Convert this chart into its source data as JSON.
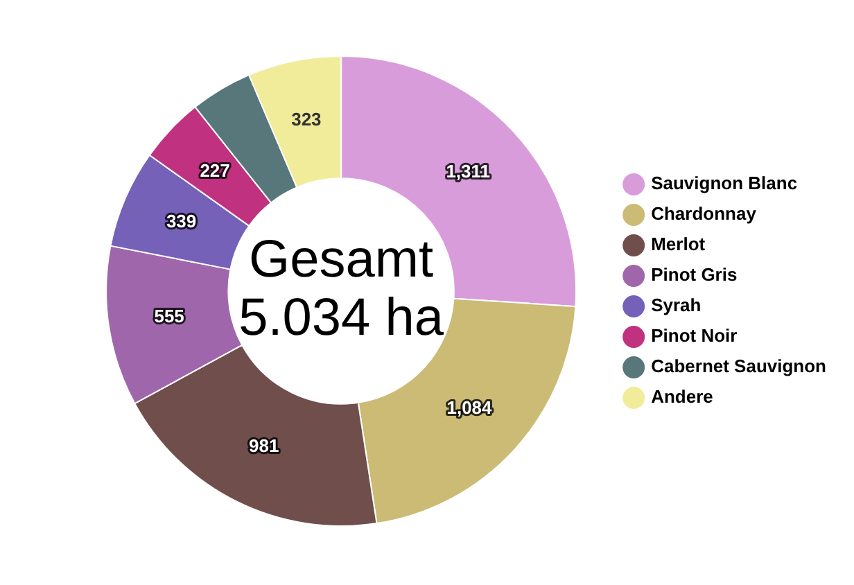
{
  "chart_data": {
    "type": "donut",
    "categories": [
      "Sauvignon Blanc",
      "Chardonnay",
      "Merlot",
      "Pinot Gris",
      "Syrah",
      "Pinot Noir",
      "Cabernet Sauvignon",
      "Andere"
    ],
    "values": [
      1311,
      1084,
      981,
      555,
      339,
      227,
      214,
      323
    ],
    "value_labels": [
      "1,311",
      "1,084",
      "981",
      "555",
      "339",
      "227",
      null,
      "323"
    ],
    "colors": [
      "#d89cdb",
      "#cbbb74",
      "#6f4e4c",
      "#a066ab",
      "#7561b8",
      "#c0317f",
      "#57777a",
      "#f0ec9a"
    ],
    "annotations": [
      "Gesamt",
      "5.034 ha"
    ],
    "legend": "right"
  }
}
